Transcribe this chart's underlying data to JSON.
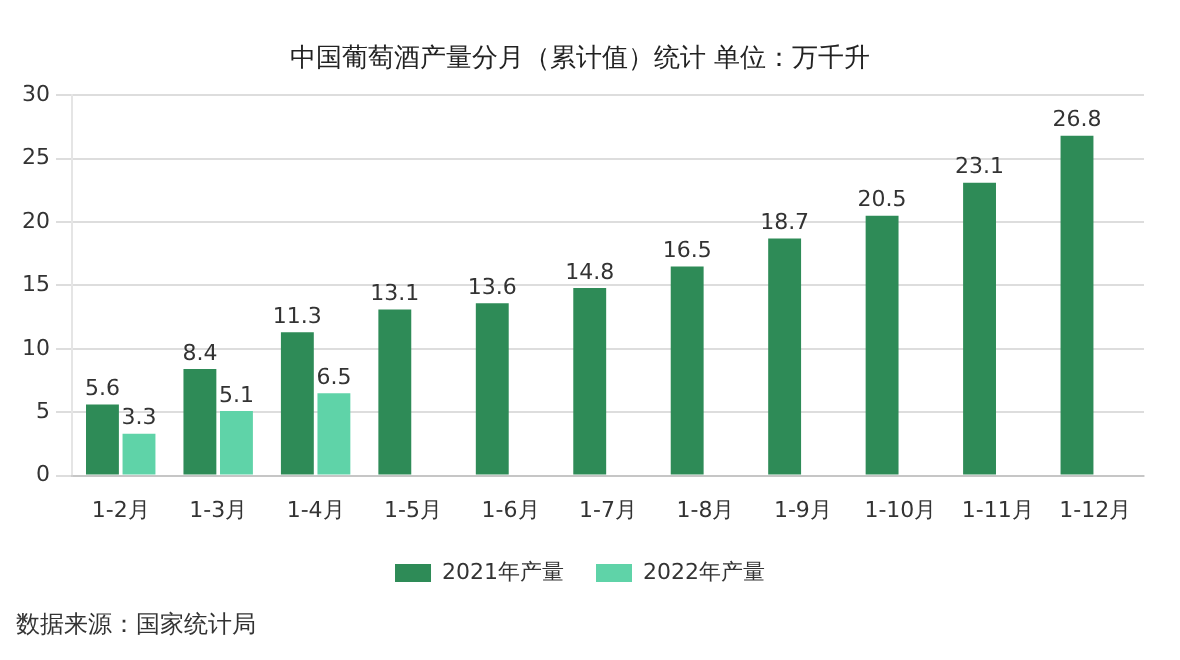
{
  "chart_data": {
    "type": "bar",
    "title": "中国葡萄酒产量分月（累计值）统计 单位：万千升",
    "categories": [
      "1-2月",
      "1-3月",
      "1-4月",
      "1-5月",
      "1-6月",
      "1-7月",
      "1-8月",
      "1-9月",
      "1-10月",
      "1-11月",
      "1-12月"
    ],
    "series": [
      {
        "name": "2021年产量",
        "color": "#2e8b57",
        "values": [
          5.6,
          8.4,
          11.3,
          13.1,
          13.6,
          14.8,
          16.5,
          18.7,
          20.5,
          23.1,
          26.8
        ]
      },
      {
        "name": "2022年产量",
        "color": "#5fd3a8",
        "values": [
          3.3,
          5.1,
          6.5,
          null,
          null,
          null,
          null,
          null,
          null,
          null,
          null
        ]
      }
    ],
    "ylim": [
      0,
      30
    ],
    "yticks": [
      0,
      5,
      10,
      15,
      20,
      25,
      30
    ],
    "grid": "y",
    "legend": "bottom",
    "data_labels": true,
    "annotations": [
      "数据来源：国家统计局"
    ]
  }
}
